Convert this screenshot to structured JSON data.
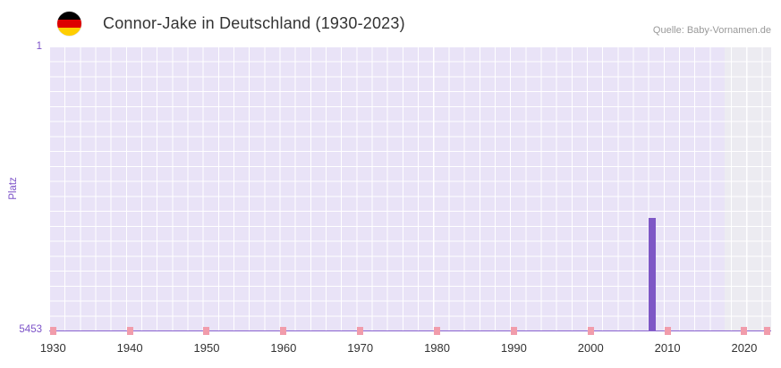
{
  "header": {
    "title": "Connor-Jake in Deutschland (1930-2023)",
    "source": "Quelle: Baby-Vornamen.de",
    "flag": "germany-flag"
  },
  "chart_data": {
    "type": "bar",
    "title": "Connor-Jake in Deutschland (1930-2023)",
    "source": "Quelle: Baby-Vornamen.de",
    "ylabel": "Platz",
    "y_axis": {
      "min": 1,
      "max": 5453,
      "inverted": true,
      "labels": [
        "1",
        "5453"
      ]
    },
    "x_axis": {
      "min": 1930,
      "max": 2023,
      "tick_years": [
        1930,
        1940,
        1950,
        1960,
        1970,
        1980,
        1990,
        2000,
        2010,
        2020
      ]
    },
    "series": [
      {
        "name": "Platz",
        "points": [
          {
            "year": 2008,
            "rank": 3300
          }
        ]
      }
    ],
    "axis_marker_years": [
      1930,
      1940,
      1950,
      1960,
      1970,
      1980,
      1990,
      2000,
      2010,
      2020,
      2023
    ],
    "recent_band": {
      "from": 2018,
      "to": 2023
    },
    "legend": "off",
    "grid": "on",
    "colors": {
      "bar": "#7e57c6",
      "axis_marker": "#f19cab",
      "plot_bg": "#e9e3f7",
      "band_bg": "#ecebf1",
      "grid": "#ffffff",
      "axis_line": "#8a63cf",
      "y_text": "#7c52c8",
      "x_text": "#333333",
      "title_text": "#333333",
      "source_text": "#999999"
    }
  }
}
